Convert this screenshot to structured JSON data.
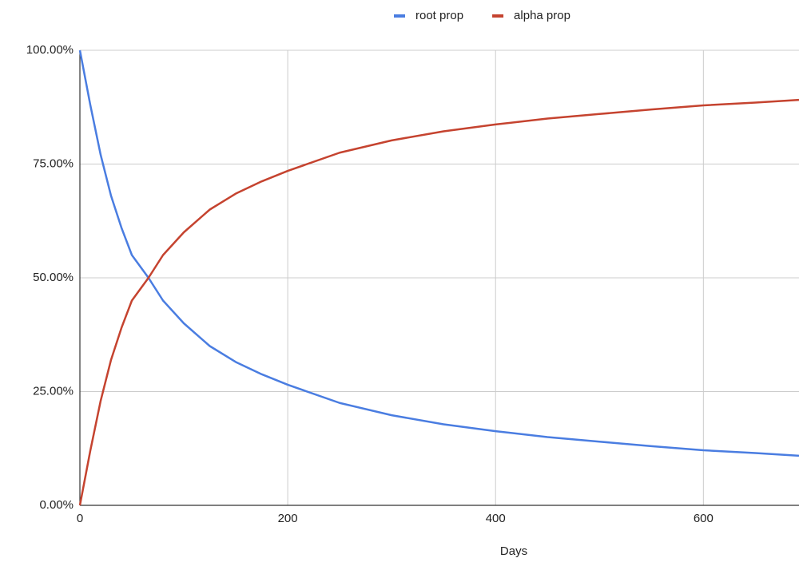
{
  "chart_data": {
    "type": "line",
    "x_label": "Days",
    "x": [
      0,
      10,
      20,
      30,
      40,
      50,
      66,
      80,
      100,
      125,
      150,
      175,
      200,
      250,
      300,
      350,
      400,
      450,
      500,
      550,
      600,
      650,
      692
    ],
    "series": [
      {
        "name": "root prop",
        "color": "#4a7de1",
        "values": [
          100,
          88,
          77,
          68,
          61,
          55,
          50,
          45,
          40,
          35,
          31.5,
          28.8,
          26.5,
          22.5,
          19.8,
          17.8,
          16.3,
          15,
          14,
          13,
          12.1,
          11.5,
          10.9
        ]
      },
      {
        "name": "alpha prop",
        "color": "#c5432f",
        "values": [
          0,
          12,
          23,
          32,
          39,
          45,
          50,
          55,
          60,
          65,
          68.5,
          71.2,
          73.5,
          77.5,
          80.2,
          82.2,
          83.7,
          85,
          86,
          87,
          87.9,
          88.5,
          89.1
        ]
      }
    ],
    "xlim": [
      0,
      692
    ],
    "xticks": [
      0,
      200,
      400,
      600
    ],
    "ylim": [
      0,
      100
    ],
    "yticks": [
      {
        "value": 0,
        "label": "0.00%"
      },
      {
        "value": 25,
        "label": "25.00%"
      },
      {
        "value": 50,
        "label": "50.00%"
      },
      {
        "value": 75,
        "label": "75.00%"
      },
      {
        "value": 100,
        "label": "100.00%"
      }
    ],
    "grid": true,
    "legend": "top"
  }
}
